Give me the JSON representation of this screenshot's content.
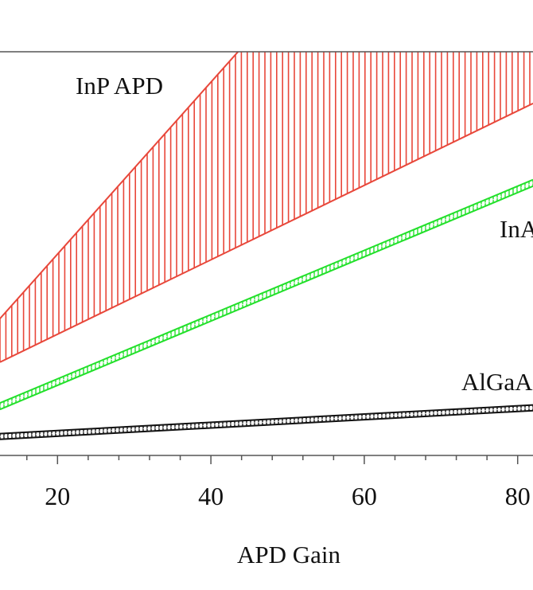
{
  "chart_data": {
    "type": "area",
    "title": "",
    "xlabel": "APD Gain",
    "ylabel": "",
    "xlim": [
      12.5,
      82
    ],
    "ylim": [
      0,
      100
    ],
    "x_major_ticks": [
      20,
      40,
      60,
      80
    ],
    "x_tick_labels": [
      "20",
      "40",
      "60",
      "80"
    ],
    "x_minor_step": 4,
    "grid": false,
    "series": [
      {
        "name": "InP APD",
        "label": "InP APD",
        "color": "#e8473a",
        "x": [
          12.5,
          82
        ],
        "lower": [
          23.1,
          87.2
        ],
        "upper": [
          33.9,
          181.9
        ],
        "hatch": "vertical"
      },
      {
        "name": "InAlAs APD",
        "label": "InA",
        "color": "#22e02a",
        "x": [
          12.5,
          82
        ],
        "lower": [
          11.4,
          66.7
        ],
        "upper": [
          13.0,
          68.3
        ],
        "hatch": "ladder"
      },
      {
        "name": "AlGaAs APD",
        "label": "AlGaA",
        "color": "#111111",
        "x": [
          12.5,
          82
        ],
        "lower": [
          4.0,
          11.1
        ],
        "upper": [
          5.4,
          12.5
        ],
        "hatch": "ladder"
      }
    ]
  }
}
